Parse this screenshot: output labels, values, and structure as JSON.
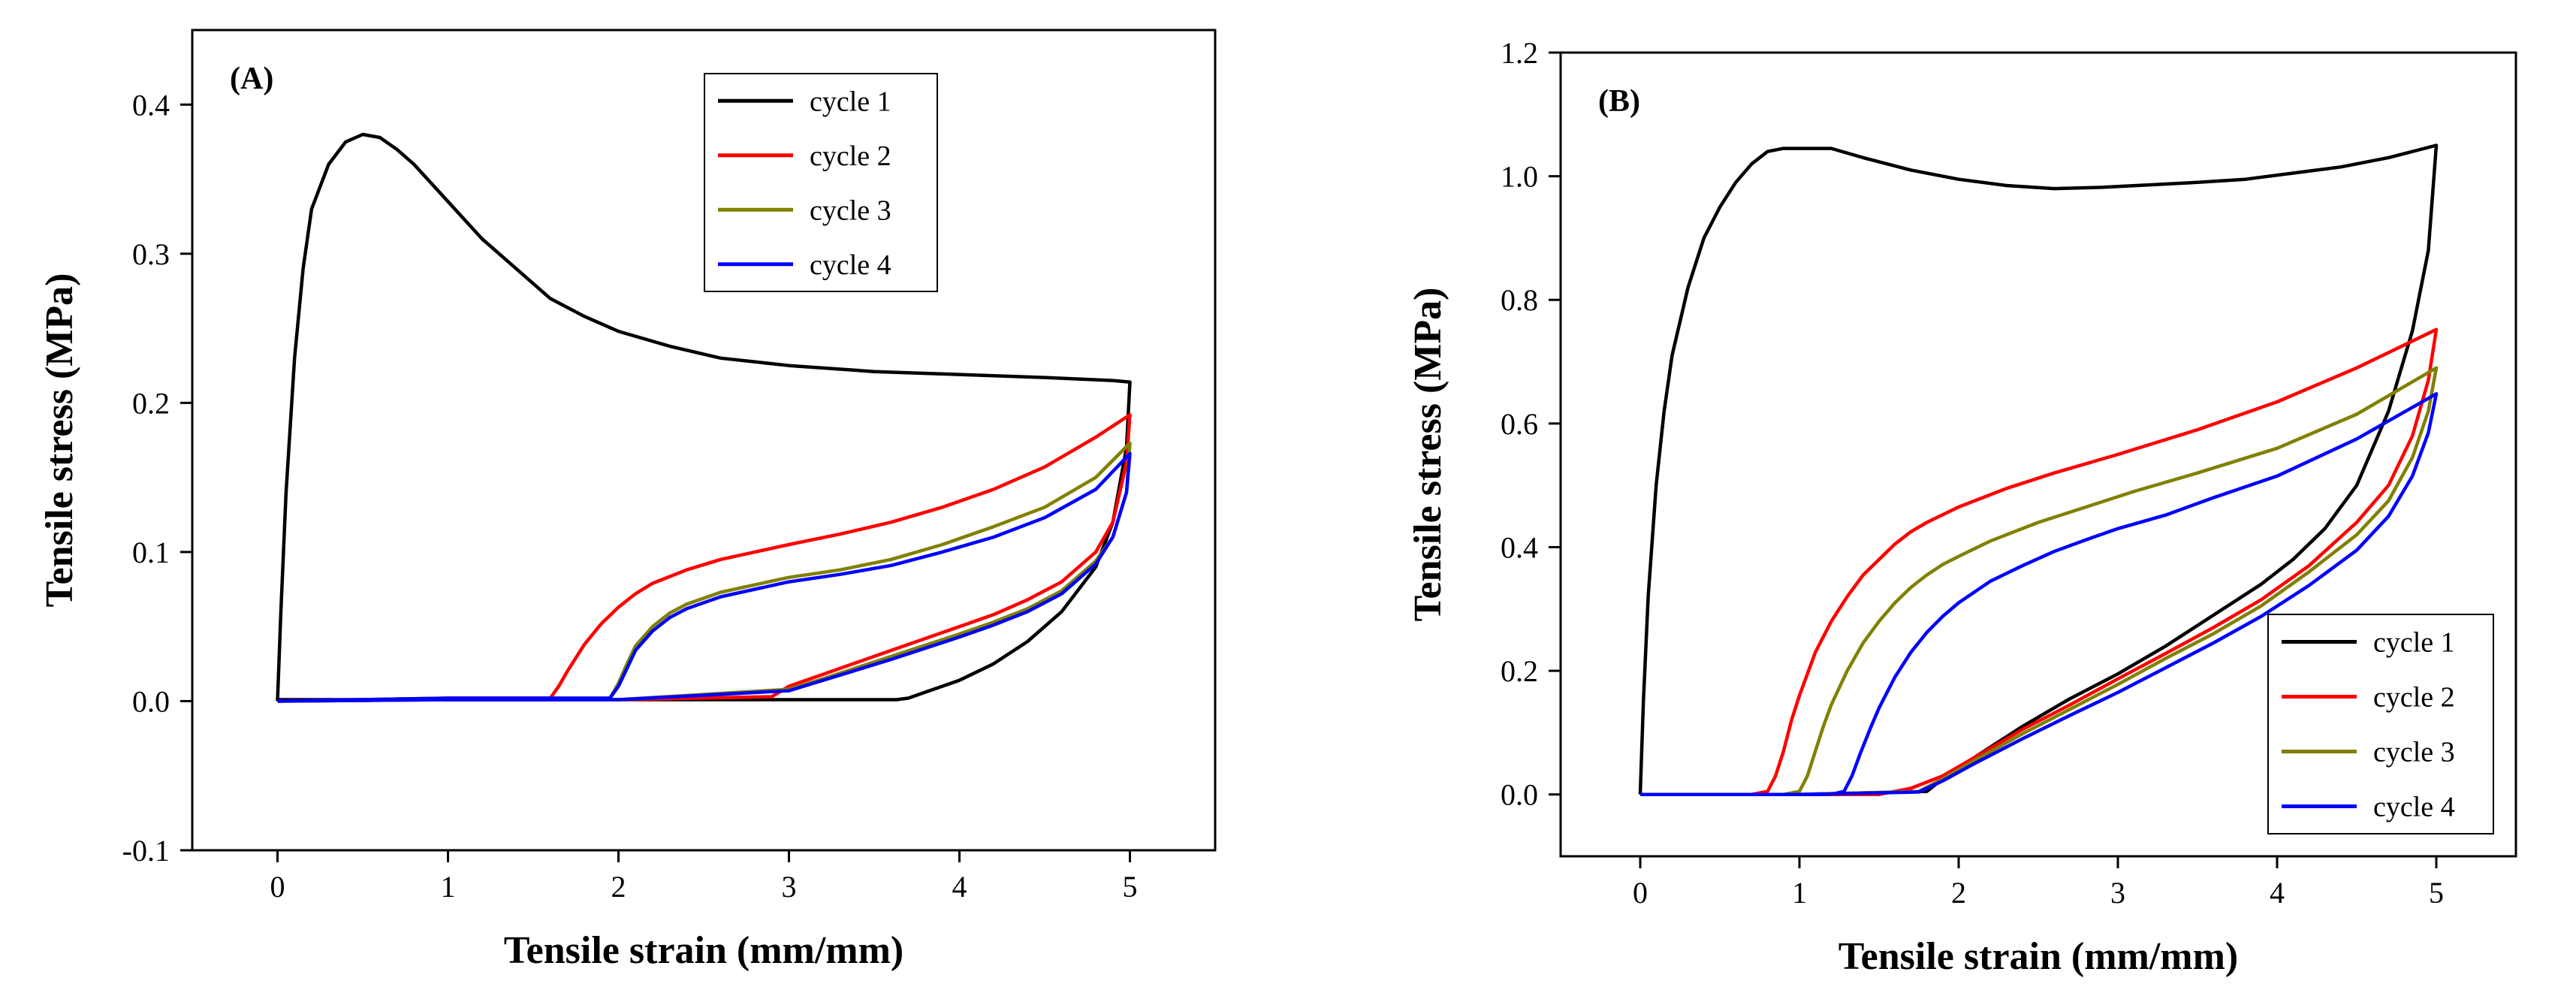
{
  "chart_data": [
    {
      "type": "line",
      "panel_label": "(A)",
      "xlabel": "Tensile strain (mm/mm)",
      "ylabel": "Tensile stress (MPa)",
      "xlim": [
        -0.5,
        5.5
      ],
      "ylim": [
        -0.1,
        0.45
      ],
      "xticks": [
        0,
        1,
        2,
        3,
        4,
        5
      ],
      "xtick_labels": [
        "0",
        "1",
        "2",
        "3",
        "4",
        "5"
      ],
      "yticks": [
        -0.1,
        0.0,
        0.1,
        0.2,
        0.3,
        0.4
      ],
      "ytick_labels": [
        "-0.1",
        "0.0",
        "0.1",
        "0.2",
        "0.3",
        "0.4"
      ],
      "legend_position": "top-right",
      "series": [
        {
          "name": "cycle 1",
          "color": "#000000",
          "x": [
            0,
            0.02,
            0.05,
            0.1,
            0.15,
            0.2,
            0.3,
            0.4,
            0.5,
            0.6,
            0.7,
            0.8,
            1.0,
            1.2,
            1.4,
            1.6,
            1.8,
            2.0,
            2.3,
            2.6,
            3.0,
            3.5,
            4.0,
            4.5,
            4.9,
            5.0,
            4.98,
            4.9,
            4.8,
            4.6,
            4.4,
            4.2,
            4.0,
            3.8,
            3.7,
            3.63,
            3.5,
            3.0,
            2.0,
            1.0,
            0.0
          ],
          "y": [
            0,
            0.06,
            0.14,
            0.23,
            0.29,
            0.33,
            0.36,
            0.375,
            0.38,
            0.378,
            0.37,
            0.36,
            0.335,
            0.31,
            0.29,
            0.27,
            0.258,
            0.248,
            0.238,
            0.23,
            0.225,
            0.221,
            0.219,
            0.217,
            0.215,
            0.214,
            0.17,
            0.12,
            0.09,
            0.06,
            0.04,
            0.025,
            0.014,
            0.006,
            0.002,
            0.001,
            0.001,
            0.001,
            0.001,
            0.001,
            0.001
          ]
        },
        {
          "name": "cycle 2",
          "color": "#ff0000",
          "x": [
            0,
            1.0,
            1.6,
            1.65,
            1.7,
            1.8,
            1.9,
            2.0,
            2.1,
            2.2,
            2.4,
            2.6,
            2.8,
            3.0,
            3.3,
            3.6,
            3.9,
            4.2,
            4.5,
            4.8,
            5.0,
            4.98,
            4.9,
            4.8,
            4.6,
            4.4,
            4.2,
            4.0,
            3.6,
            3.2,
            3.0,
            2.9,
            2.0,
            1.0,
            0.0
          ],
          "y": [
            0,
            0.002,
            0.002,
            0.01,
            0.02,
            0.038,
            0.052,
            0.063,
            0.072,
            0.079,
            0.088,
            0.095,
            0.1,
            0.105,
            0.112,
            0.12,
            0.13,
            0.142,
            0.157,
            0.177,
            0.192,
            0.16,
            0.12,
            0.1,
            0.08,
            0.068,
            0.058,
            0.05,
            0.034,
            0.018,
            0.01,
            0.003,
            0.001,
            0.001,
            0.0
          ]
        },
        {
          "name": "cycle 3",
          "color": "#808000",
          "x": [
            0,
            1.0,
            1.95,
            2.0,
            2.05,
            2.1,
            2.2,
            2.3,
            2.4,
            2.6,
            2.8,
            3.0,
            3.3,
            3.6,
            3.9,
            4.2,
            4.5,
            4.8,
            5.0,
            4.98,
            4.9,
            4.8,
            4.6,
            4.4,
            4.2,
            4.0,
            3.6,
            3.2,
            3.0,
            2.0,
            1.0,
            0.0
          ],
          "y": [
            0,
            0.002,
            0.002,
            0.012,
            0.025,
            0.037,
            0.05,
            0.059,
            0.065,
            0.073,
            0.078,
            0.083,
            0.088,
            0.095,
            0.105,
            0.117,
            0.13,
            0.15,
            0.173,
            0.14,
            0.11,
            0.094,
            0.074,
            0.062,
            0.053,
            0.045,
            0.03,
            0.015,
            0.008,
            0.001,
            0.001,
            0.0
          ]
        },
        {
          "name": "cycle 4",
          "color": "#0000ff",
          "x": [
            0,
            1.0,
            1.95,
            2.0,
            2.05,
            2.1,
            2.2,
            2.3,
            2.4,
            2.6,
            2.8,
            3.0,
            3.3,
            3.6,
            3.9,
            4.2,
            4.5,
            4.8,
            5.0,
            4.98,
            4.9,
            4.8,
            4.6,
            4.4,
            4.2,
            4.0,
            3.6,
            3.2,
            3.0,
            2.0,
            1.0,
            0.0
          ],
          "y": [
            0,
            0.002,
            0.002,
            0.01,
            0.022,
            0.034,
            0.047,
            0.056,
            0.062,
            0.07,
            0.075,
            0.08,
            0.085,
            0.091,
            0.1,
            0.11,
            0.123,
            0.142,
            0.166,
            0.14,
            0.11,
            0.092,
            0.072,
            0.06,
            0.051,
            0.043,
            0.028,
            0.014,
            0.007,
            0.001,
            0.001,
            0.0
          ]
        }
      ]
    },
    {
      "type": "line",
      "panel_label": "(B)",
      "xlabel": "Tensile strain (mm/mm)",
      "ylabel": "Tensile stress (MPa)",
      "xlim": [
        -0.5,
        5.5
      ],
      "ylim": [
        -0.1,
        1.2
      ],
      "xticks": [
        0,
        1,
        2,
        3,
        4,
        5
      ],
      "xtick_labels": [
        "0",
        "1",
        "2",
        "3",
        "4",
        "5"
      ],
      "yticks": [
        0.0,
        0.2,
        0.4,
        0.6,
        0.8,
        1.0,
        1.2
      ],
      "ytick_labels": [
        "0.0",
        "0.2",
        "0.4",
        "0.6",
        "0.8",
        "1.0",
        "1.2"
      ],
      "legend_position": "bottom-right",
      "series": [
        {
          "name": "cycle 1",
          "color": "#000000",
          "x": [
            0,
            0.02,
            0.05,
            0.1,
            0.15,
            0.2,
            0.3,
            0.4,
            0.5,
            0.6,
            0.7,
            0.8,
            0.9,
            1.0,
            1.2,
            1.4,
            1.7,
            2.0,
            2.3,
            2.6,
            2.9,
            3.2,
            3.5,
            3.8,
            4.1,
            4.4,
            4.7,
            5.0,
            4.95,
            4.85,
            4.7,
            4.5,
            4.3,
            4.1,
            3.9,
            3.6,
            3.3,
            3.0,
            2.7,
            2.4,
            2.1,
            1.9,
            1.8,
            1.0,
            0.0
          ],
          "y": [
            0,
            0.15,
            0.32,
            0.5,
            0.62,
            0.71,
            0.82,
            0.9,
            0.95,
            0.99,
            1.02,
            1.04,
            1.045,
            1.045,
            1.045,
            1.03,
            1.01,
            0.995,
            0.985,
            0.98,
            0.982,
            0.986,
            0.99,
            0.995,
            1.005,
            1.015,
            1.03,
            1.05,
            0.88,
            0.75,
            0.62,
            0.5,
            0.43,
            0.38,
            0.34,
            0.29,
            0.24,
            0.195,
            0.155,
            0.11,
            0.06,
            0.025,
            0.005,
            0.0,
            0.0
          ]
        },
        {
          "name": "cycle 2",
          "color": "#ff0000",
          "x": [
            0,
            0.7,
            0.8,
            0.85,
            0.9,
            0.95,
            1.0,
            1.1,
            1.2,
            1.3,
            1.4,
            1.5,
            1.6,
            1.7,
            1.8,
            2.0,
            2.3,
            2.6,
            3.0,
            3.5,
            4.0,
            4.5,
            5.0,
            4.95,
            4.85,
            4.7,
            4.5,
            4.2,
            3.9,
            3.6,
            3.3,
            3.0,
            2.7,
            2.4,
            2.1,
            1.9,
            1.7,
            1.5,
            1.0,
            0.0
          ],
          "y": [
            0,
            0.0,
            0.005,
            0.03,
            0.07,
            0.12,
            0.16,
            0.23,
            0.28,
            0.32,
            0.355,
            0.38,
            0.405,
            0.425,
            0.44,
            0.465,
            0.495,
            0.52,
            0.55,
            0.59,
            0.635,
            0.69,
            0.752,
            0.67,
            0.58,
            0.5,
            0.44,
            0.37,
            0.315,
            0.27,
            0.228,
            0.187,
            0.145,
            0.105,
            0.06,
            0.03,
            0.01,
            0.0,
            0.0,
            0.0
          ]
        },
        {
          "name": "cycle 3",
          "color": "#808000",
          "x": [
            0,
            0.9,
            1.0,
            1.05,
            1.1,
            1.15,
            1.2,
            1.3,
            1.4,
            1.5,
            1.6,
            1.7,
            1.8,
            1.9,
            2.0,
            2.2,
            2.5,
            2.8,
            3.1,
            3.5,
            4.0,
            4.5,
            5.0,
            4.95,
            4.85,
            4.7,
            4.5,
            4.2,
            3.9,
            3.6,
            3.3,
            3.0,
            2.7,
            2.4,
            2.1,
            1.9,
            1.75,
            1.0,
            0.0
          ],
          "y": [
            0,
            0.0,
            0.005,
            0.03,
            0.07,
            0.11,
            0.145,
            0.2,
            0.245,
            0.28,
            0.31,
            0.335,
            0.355,
            0.372,
            0.385,
            0.41,
            0.44,
            0.465,
            0.49,
            0.52,
            0.56,
            0.615,
            0.69,
            0.62,
            0.545,
            0.475,
            0.42,
            0.36,
            0.305,
            0.26,
            0.22,
            0.178,
            0.138,
            0.098,
            0.055,
            0.025,
            0.005,
            0.0,
            0.0
          ]
        },
        {
          "name": "cycle 4",
          "color": "#0000ff",
          "x": [
            0,
            1.2,
            1.28,
            1.33,
            1.38,
            1.45,
            1.5,
            1.6,
            1.7,
            1.8,
            1.9,
            2.0,
            2.2,
            2.4,
            2.6,
            2.8,
            3.0,
            3.3,
            3.6,
            4.0,
            4.5,
            5.0,
            4.95,
            4.85,
            4.7,
            4.5,
            4.2,
            3.9,
            3.6,
            3.3,
            3.0,
            2.7,
            2.4,
            2.1,
            1.9,
            1.75,
            1.0,
            0.0
          ],
          "y": [
            0,
            0.0,
            0.005,
            0.03,
            0.065,
            0.11,
            0.14,
            0.19,
            0.23,
            0.262,
            0.288,
            0.31,
            0.345,
            0.37,
            0.393,
            0.412,
            0.43,
            0.452,
            0.48,
            0.515,
            0.575,
            0.648,
            0.585,
            0.515,
            0.45,
            0.395,
            0.338,
            0.288,
            0.245,
            0.205,
            0.165,
            0.128,
            0.09,
            0.05,
            0.022,
            0.004,
            0.0,
            0.0
          ]
        }
      ]
    }
  ]
}
